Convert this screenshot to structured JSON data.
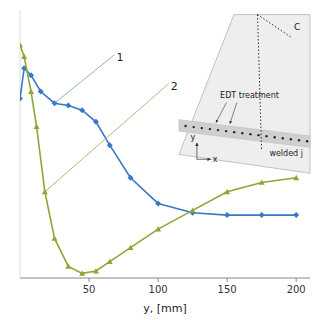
{
  "chart_data": {
    "type": "line",
    "xlabel": "y, [mm]",
    "xlim": [
      0,
      210
    ],
    "ylim": [
      -0.15,
      1.0
    ],
    "xticks": [
      50,
      100,
      150,
      200
    ],
    "grid": false,
    "tick_labels": "x",
    "series": [
      {
        "name": "1",
        "color": "#3878c8",
        "marker": "diamond",
        "x": [
          0,
          3,
          8,
          15,
          25,
          35,
          45,
          55,
          65,
          80,
          100,
          125,
          150,
          175,
          200
        ],
        "values": [
          0.62,
          0.75,
          0.72,
          0.65,
          0.6,
          0.59,
          0.57,
          0.52,
          0.42,
          0.28,
          0.17,
          0.13,
          0.12,
          0.12,
          0.12
        ]
      },
      {
        "name": "2",
        "color": "#8ba832",
        "marker": "triangle",
        "x": [
          0,
          3,
          8,
          12,
          18,
          25,
          35,
          45,
          55,
          65,
          80,
          100,
          125,
          150,
          175,
          200
        ],
        "values": [
          0.85,
          0.8,
          0.65,
          0.5,
          0.22,
          0.02,
          -0.1,
          -0.13,
          -0.12,
          -0.08,
          -0.02,
          0.06,
          0.14,
          0.22,
          0.26,
          0.28
        ]
      }
    ],
    "annotations": [
      "C",
      "EDT treatment",
      "welded j",
      "x",
      "y"
    ]
  }
}
